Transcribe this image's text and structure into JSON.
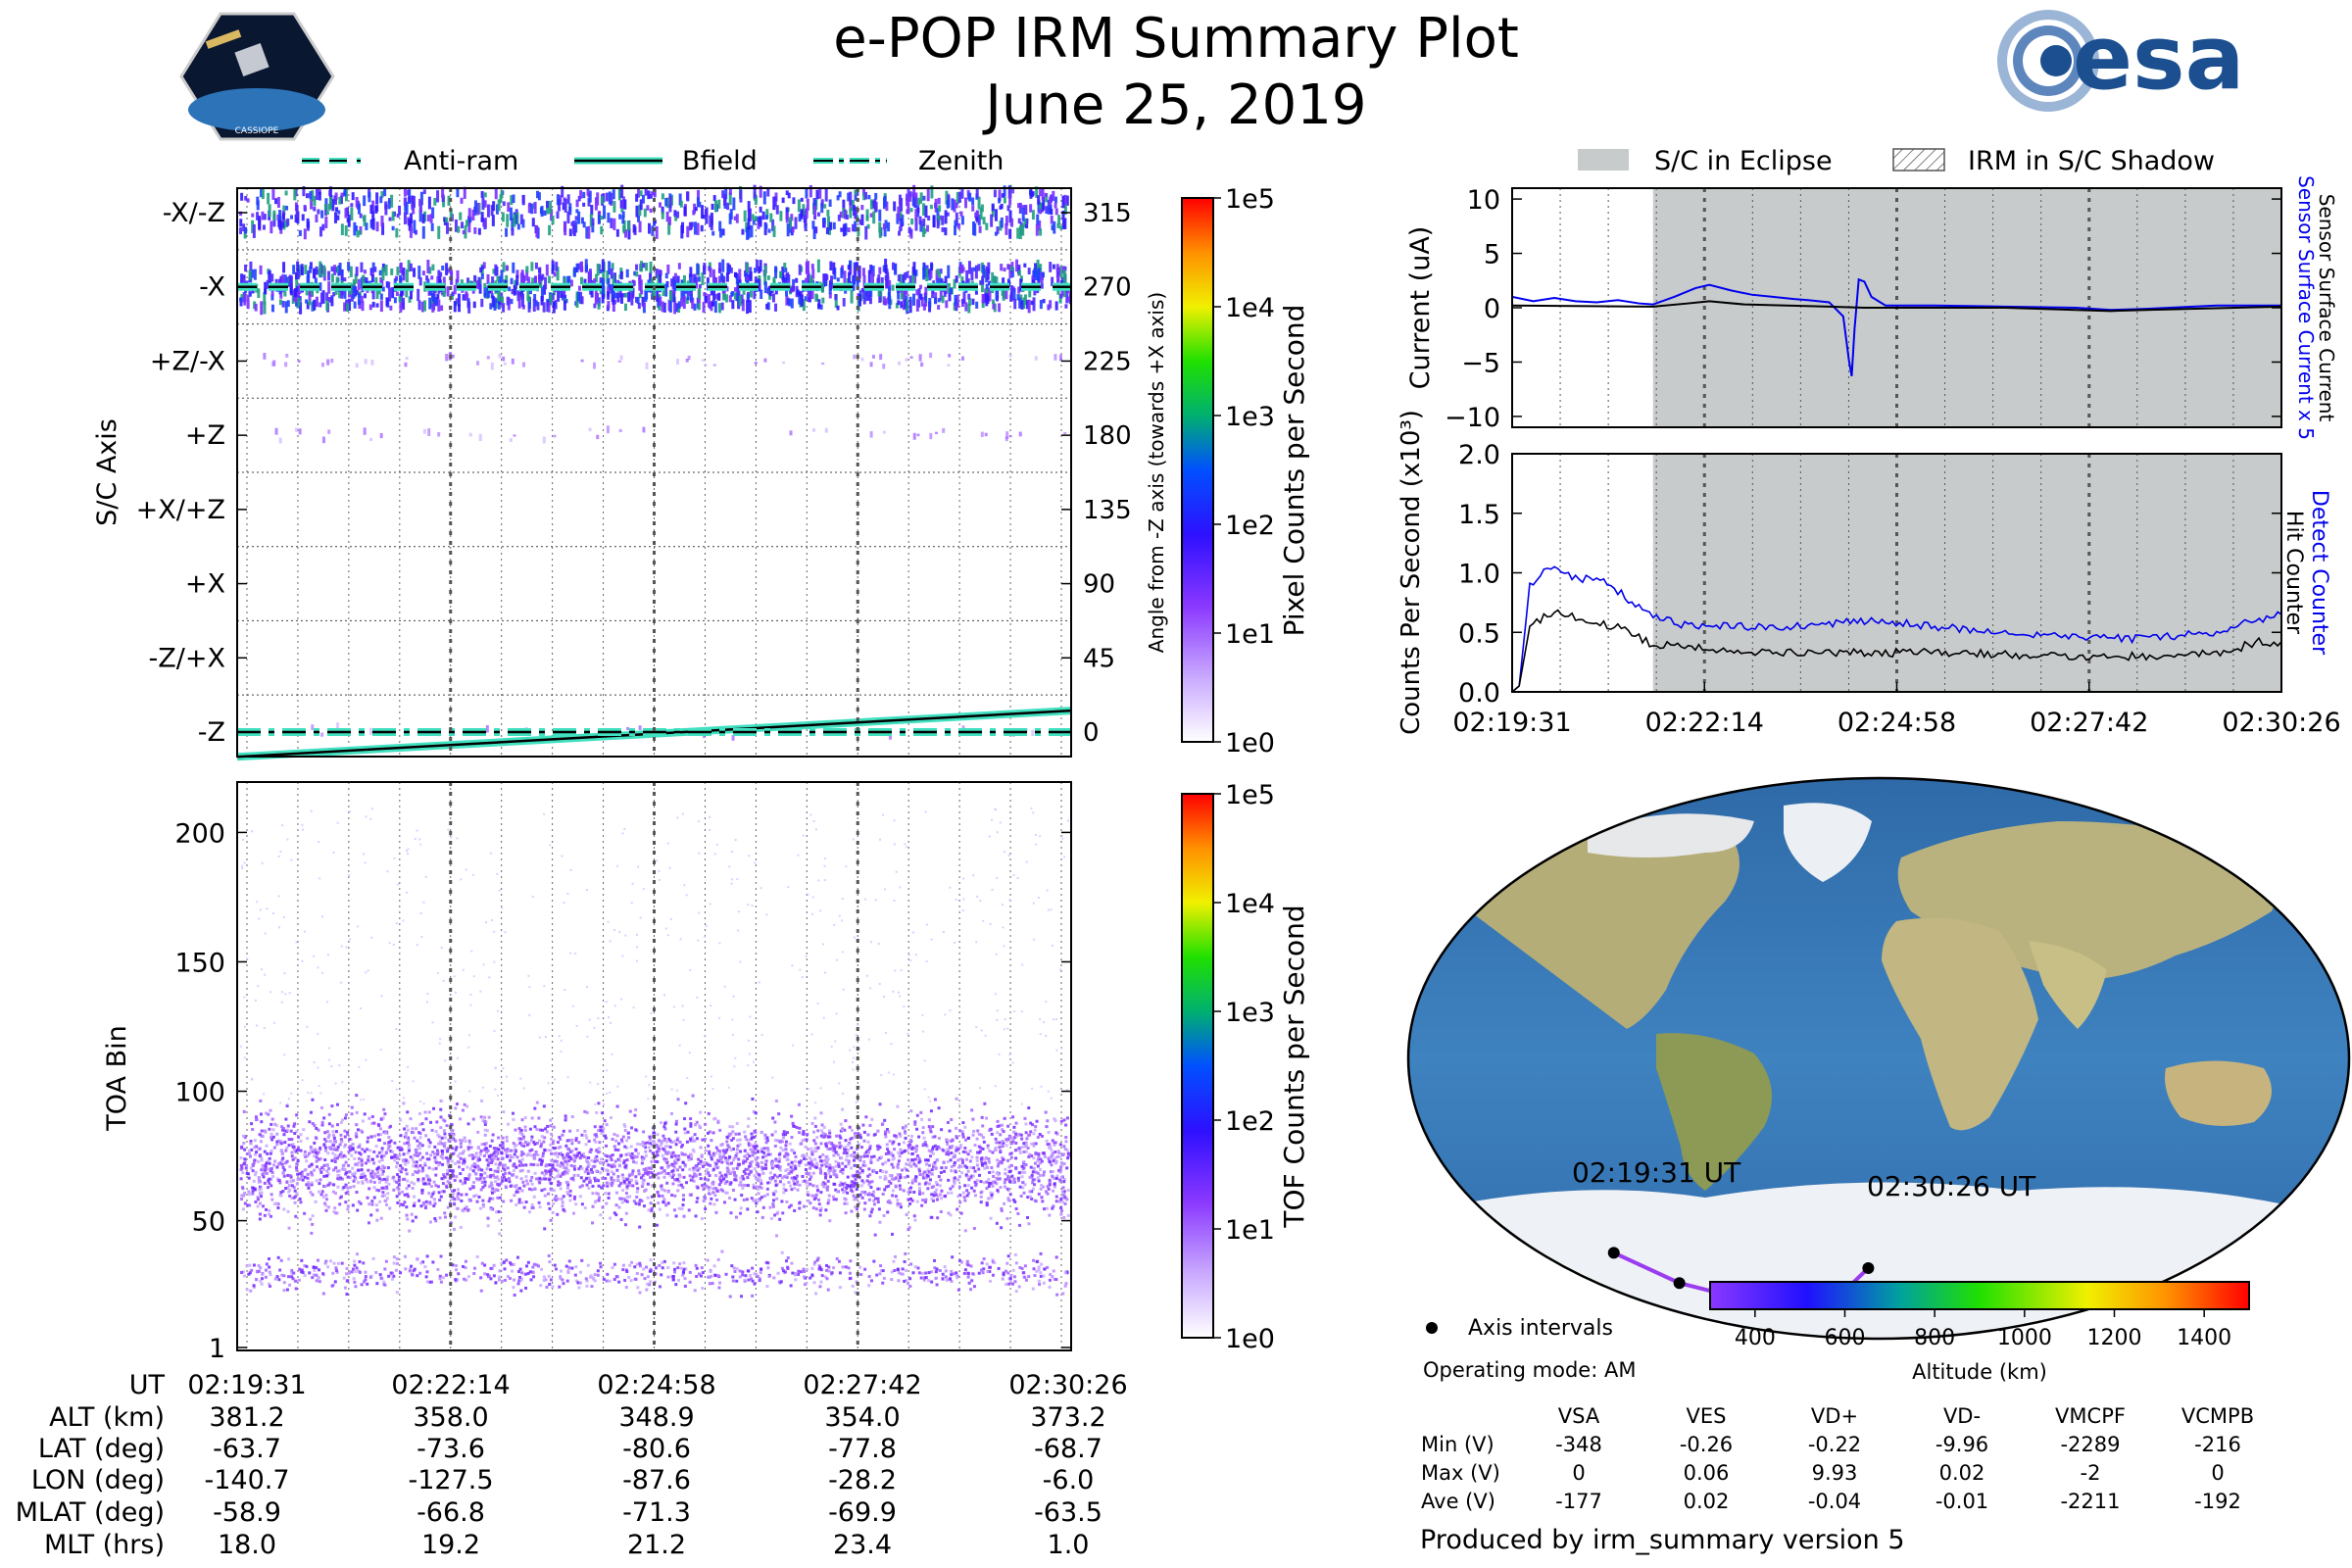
{
  "header": {
    "title_line1": "e-POP IRM Summary Plot",
    "title_line2": "June 25, 2019",
    "logo_left_text": "CASSIOPE",
    "logo_right_text": "esa"
  },
  "legend_left": [
    "Anti-ram",
    "Bfield",
    "Zenith"
  ],
  "legend_right": [
    "S/C in Eclipse",
    "IRM in S/C Shadow"
  ],
  "colors": {
    "trace_blue": "#0000ee",
    "trace_black": "#000000",
    "eclipse": "#c8cbcb",
    "guide_line": "#40e0c0",
    "track": "#9a3cf0",
    "ocean": "#3a76b5",
    "land": "#b7b07a",
    "ice": "#f1f4f7"
  },
  "colorbar_pixel": {
    "label": "Pixel Counts per Second",
    "ticks": [
      "1e0",
      "1e1",
      "1e2",
      "1e3",
      "1e4",
      "1e5"
    ]
  },
  "colorbar_tof": {
    "label": "TOF Counts per Second",
    "ticks": [
      "1e0",
      "1e1",
      "1e2",
      "1e3",
      "1e4",
      "1e5"
    ]
  },
  "altitude_colorbar": {
    "label": "Altitude (km)",
    "ticks": [
      "400",
      "600",
      "800",
      "1000",
      "1200",
      "1400"
    ]
  },
  "map": {
    "start_label": "02:19:31 UT",
    "end_label": "02:30:26 UT",
    "axis_intervals_label": "Axis intervals",
    "operating_mode": "Operating mode: AM"
  },
  "voltage_table": {
    "columns": [
      "VSA",
      "VES",
      "VD+",
      "VD-",
      "VMCPF",
      "VCMPB"
    ],
    "rows": [
      {
        "label": "Min (V)",
        "values": [
          "-348",
          "-0.26",
          "-0.22",
          "-9.96",
          "-2289",
          "-216"
        ]
      },
      {
        "label": "Max (V)",
        "values": [
          "0",
          "0.06",
          "9.93",
          "0.02",
          "-2",
          "0"
        ]
      },
      {
        "label": "Ave (V)",
        "values": [
          "-177",
          "0.02",
          "-0.04",
          "-0.01",
          "-2211",
          "-192"
        ]
      }
    ]
  },
  "footer": {
    "produced_by": "Produced by irm_summary version 5"
  },
  "ephemeris": {
    "row_labels": [
      "UT",
      "ALT (km)",
      "LAT (deg)",
      "LON (deg)",
      "MLAT (deg)",
      "MLT (hrs)"
    ],
    "columns": [
      [
        "02:19:31",
        "381.2",
        "-63.7",
        "-140.7",
        "-58.9",
        "18.0"
      ],
      [
        "02:22:14",
        "358.0",
        "-73.6",
        "-127.5",
        "-66.8",
        "19.2"
      ],
      [
        "02:24:58",
        "348.9",
        "-80.6",
        "-87.6",
        "-71.3",
        "21.2"
      ],
      [
        "02:27:42",
        "354.0",
        "-77.8",
        "-28.2",
        "-69.9",
        "23.4"
      ],
      [
        "02:30:26",
        "373.2",
        "-68.7",
        "-6.0",
        "-63.5",
        "1.0"
      ]
    ]
  },
  "chart_data": [
    {
      "type": "heatmap",
      "name": "pixel-angle",
      "ylabel": "S/C Axis",
      "ylabel_right": "Angle from -Z axis (towards +X axis)",
      "y_axis_labels": [
        "-X/-Z",
        "-X",
        "+Z/-X",
        "+Z",
        "+X/+Z",
        "+X",
        "-Z/+X",
        "-Z"
      ],
      "y_right_ticks": [
        "315",
        "270",
        "225",
        "180",
        "135",
        "90",
        "45",
        "0"
      ],
      "x_ticks": [
        "02:19:31",
        "02:22:14",
        "02:24:58",
        "02:27:42",
        "02:30:26"
      ],
      "colorbar": "Pixel Counts per Second",
      "bands": [
        {
          "axis": "-X/-Z",
          "intensity": "high",
          "rel_count": 40
        },
        {
          "axis": "-X",
          "intensity": "high",
          "rel_count": 60
        },
        {
          "axis": "+Z/-X",
          "intensity": "low",
          "rel_count": 3
        },
        {
          "axis": "+Z",
          "intensity": "low",
          "rel_count": 2
        },
        {
          "axis": "-Z",
          "intensity": "low",
          "rel_count": 1
        }
      ],
      "lines": [
        {
          "name": "Anti-ram",
          "style": "dashed",
          "y_start_deg": 270,
          "y_end_deg": 270
        },
        {
          "name": "Bfield",
          "style": "solid",
          "y_start_deg": -15,
          "y_end_deg": 13
        },
        {
          "name": "Zenith",
          "style": "dashdot",
          "y_start_deg": 0,
          "y_end_deg": 0
        }
      ]
    },
    {
      "type": "heatmap",
      "name": "tof",
      "ylabel": "TOA Bin",
      "y_ticks": [
        "1",
        "50",
        "100",
        "150",
        "200"
      ],
      "ylim": [
        1,
        210
      ],
      "x_ticks": [
        "02:19:31",
        "02:22:14",
        "02:24:58",
        "02:27:42",
        "02:30:26"
      ],
      "colorbar": "TOF Counts per Second",
      "bands": [
        {
          "center": 72,
          "halfwidth": 18,
          "intensity": "medium"
        },
        {
          "center": 30,
          "halfwidth": 6,
          "intensity": "low"
        }
      ]
    },
    {
      "type": "line",
      "name": "current",
      "ylabel": "Current (uA)",
      "ylabel_right": [
        "Sensor Surface Current x 5",
        "Sensor Surface Current"
      ],
      "ylim": [
        -11,
        11
      ],
      "y_ticks": [
        "10",
        "5",
        "0",
        "−5",
        "−10"
      ],
      "x_minutes": [
        0,
        10.92
      ],
      "eclipse_start_min": 2.0,
      "series": [
        {
          "name": "Sensor Surface Current x 5",
          "points": [
            [
              0,
              1
            ],
            [
              0.3,
              0.6
            ],
            [
              0.6,
              0.9
            ],
            [
              0.9,
              0.6
            ],
            [
              1.2,
              0.5
            ],
            [
              1.5,
              0.7
            ],
            [
              1.8,
              0.4
            ],
            [
              2.0,
              0.3
            ],
            [
              2.3,
              1.0
            ],
            [
              2.6,
              1.8
            ],
            [
              2.8,
              2.1
            ],
            [
              3.1,
              1.6
            ],
            [
              3.4,
              1.2
            ],
            [
              3.7,
              1.0
            ],
            [
              4.0,
              0.8
            ],
            [
              4.2,
              0.7
            ],
            [
              4.5,
              0.5
            ],
            [
              4.7,
              -0.8
            ],
            [
              4.78,
              -4.8
            ],
            [
              4.82,
              -6.3
            ],
            [
              4.86,
              -2
            ],
            [
              4.92,
              2.6
            ],
            [
              5.0,
              2.4
            ],
            [
              5.1,
              1.0
            ],
            [
              5.3,
              0.2
            ],
            [
              6.0,
              0.2
            ],
            [
              7.0,
              0.1
            ],
            [
              8.0,
              0
            ],
            [
              8.5,
              -0.2
            ],
            [
              9.0,
              -0.1
            ],
            [
              10.0,
              0.2
            ],
            [
              10.92,
              0.2
            ]
          ]
        },
        {
          "name": "Sensor Surface Current",
          "points": [
            [
              0,
              0.2
            ],
            [
              2.0,
              0.1
            ],
            [
              2.5,
              0.4
            ],
            [
              2.8,
              0.6
            ],
            [
              3.3,
              0.3
            ],
            [
              4.5,
              0.1
            ],
            [
              5.0,
              0
            ],
            [
              7.0,
              0
            ],
            [
              8.5,
              -0.3
            ],
            [
              9.0,
              -0.2
            ],
            [
              10.92,
              0.1
            ]
          ]
        }
      ]
    },
    {
      "type": "line",
      "name": "counts",
      "ylabel": "Counts Per Second (x10³)",
      "ylabel_right": [
        "Detect Counter",
        "Hit Counter"
      ],
      "ylim": [
        0,
        2.0
      ],
      "y_ticks": [
        "2.0",
        "1.5",
        "1.0",
        "0.5",
        "0.0"
      ],
      "x_ticks": [
        "02:19:31",
        "02:22:14",
        "02:24:58",
        "02:27:42",
        "02:30:26"
      ],
      "series": [
        {
          "name": "Detect Counter",
          "points": [
            [
              0,
              0
            ],
            [
              0.1,
              0.05
            ],
            [
              0.25,
              0.9
            ],
            [
              0.5,
              1.05
            ],
            [
              0.9,
              0.95
            ],
            [
              1.3,
              0.95
            ],
            [
              1.6,
              0.8
            ],
            [
              2.0,
              0.65
            ],
            [
              2.5,
              0.55
            ],
            [
              4,
              0.55
            ],
            [
              5,
              0.6
            ],
            [
              6,
              0.55
            ],
            [
              7,
              0.5
            ],
            [
              8,
              0.45
            ],
            [
              9,
              0.45
            ],
            [
              10,
              0.5
            ],
            [
              10.5,
              0.6
            ],
            [
              10.92,
              0.65
            ]
          ]
        },
        {
          "name": "Hit Counter",
          "points": [
            [
              0,
              0
            ],
            [
              0.1,
              0.05
            ],
            [
              0.25,
              0.55
            ],
            [
              0.6,
              0.68
            ],
            [
              1.0,
              0.6
            ],
            [
              1.5,
              0.55
            ],
            [
              2.0,
              0.4
            ],
            [
              3,
              0.35
            ],
            [
              4,
              0.33
            ],
            [
              6,
              0.33
            ],
            [
              8,
              0.3
            ],
            [
              9,
              0.3
            ],
            [
              10,
              0.32
            ],
            [
              10.6,
              0.42
            ],
            [
              10.92,
              0.42
            ]
          ]
        }
      ]
    },
    {
      "type": "scatter",
      "name": "orbit-track",
      "points_lat_lon": [
        [
          -63.7,
          -140.7
        ],
        [
          -73.6,
          -127.5
        ],
        [
          -80.6,
          -87.6
        ],
        [
          -77.8,
          -28.2
        ],
        [
          -68.7,
          -6.0
        ]
      ],
      "altitude_km": [
        381.2,
        358.0,
        348.9,
        354.0,
        373.2
      ]
    }
  ]
}
